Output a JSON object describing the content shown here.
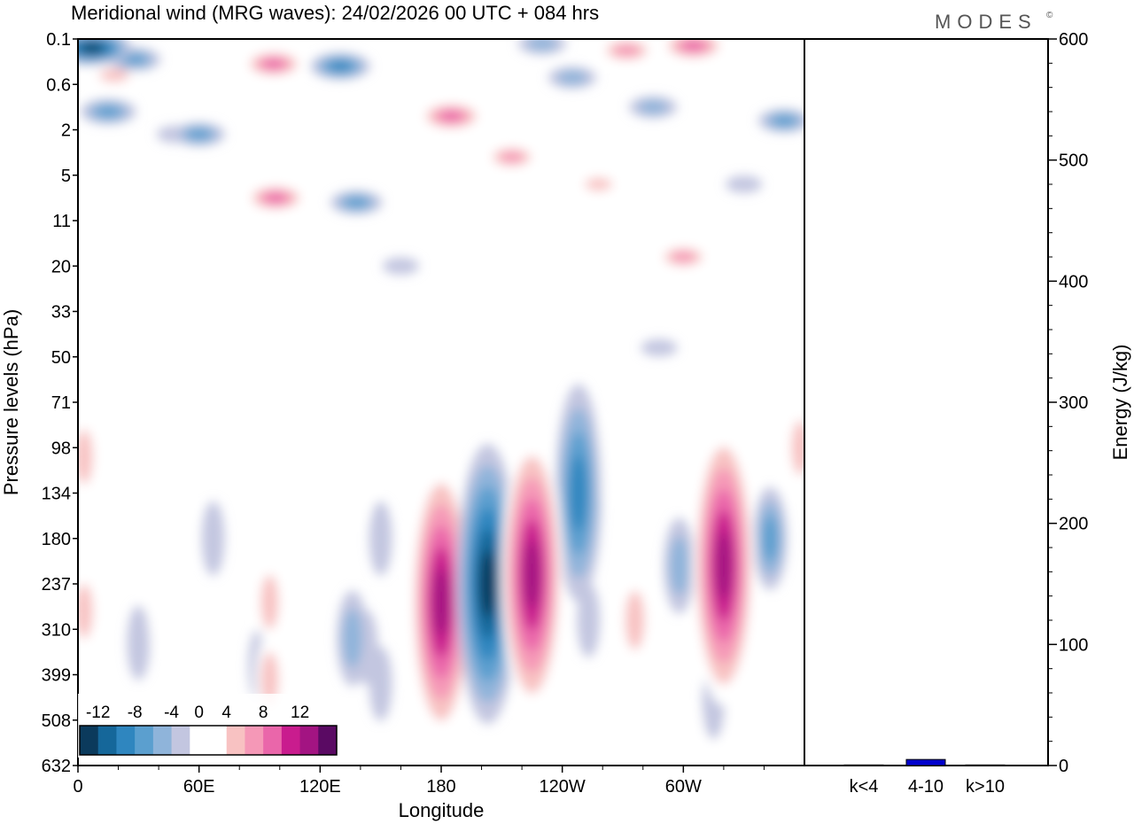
{
  "chart_data": {
    "type": "heatmap",
    "title": "Meridional wind (MRG waves):  24/02/2026  00 UTC  + 084 hrs",
    "logo": "MODES",
    "logo_mark": "©",
    "xlabel": "Longitude",
    "ylabel": "Pressure levels (hPa)",
    "x_ticks": [
      "0",
      "60E",
      "120E",
      "180",
      "120W",
      "60W"
    ],
    "x_tick_deg": [
      0,
      60,
      120,
      180,
      240,
      300
    ],
    "x_range_deg": [
      0,
      360
    ],
    "y_ticks": [
      "0.1",
      "0.6",
      "2",
      "5",
      "11",
      "20",
      "33",
      "50",
      "71",
      "98",
      "134",
      "180",
      "237",
      "310",
      "399",
      "508",
      "632"
    ],
    "colorbar": {
      "labels": [
        "-12",
        "-8",
        "-4",
        "0",
        "4",
        "8",
        "12"
      ],
      "label_levels": [
        -12,
        -8,
        -4,
        0,
        4,
        8,
        12
      ],
      "levels": [
        -14,
        -12,
        -10,
        -8,
        -6,
        -4,
        -2,
        2,
        4,
        6,
        8,
        10,
        12,
        14
      ],
      "colors": [
        "#0b3a5c",
        "#15679a",
        "#2f86bf",
        "#5b9fcf",
        "#8fb4da",
        "#c3c6e0",
        "#ffffff",
        "#ffffff",
        "#f8c2c2",
        "#f598b7",
        "#ea66aa",
        "#c91c8e",
        "#a31482",
        "#5a0a63"
      ]
    },
    "features": [
      {
        "lon": 7,
        "lev": 0.2,
        "v": -14
      },
      {
        "lon": 18,
        "lev": 0.8,
        "v": 6
      },
      {
        "lon": 28,
        "lev": 0.45,
        "v": -7
      },
      {
        "lon": 15,
        "lev": 1.6,
        "v": -8
      },
      {
        "lon": 48,
        "lev": 2.1,
        "v": -3
      },
      {
        "lon": 60,
        "lev": 2.1,
        "v": -7
      },
      {
        "lon": 64,
        "lev": 0.2,
        "v": 4
      },
      {
        "lon": 78,
        "lev": 1.2,
        "v": 2
      },
      {
        "lon": 97,
        "lev": 0.55,
        "v": 9
      },
      {
        "lon": 98,
        "lev": 3.5,
        "v": 9
      },
      {
        "lon": 130,
        "lev": 0.6,
        "v": -9
      },
      {
        "lon": 138,
        "lev": 3.6,
        "v": -7
      },
      {
        "lon": 160,
        "lev": 5.0,
        "v": -3
      },
      {
        "lon": 168,
        "lev": 2.6,
        "v": 4
      },
      {
        "lon": 185,
        "lev": 1.7,
        "v": 10
      },
      {
        "lon": 200,
        "lev": 5.2,
        "v": 3
      },
      {
        "lon": 215,
        "lev": 2.6,
        "v": 7
      },
      {
        "lon": 230,
        "lev": 0.1,
        "v": -6
      },
      {
        "lon": 245,
        "lev": 0.85,
        "v": -6
      },
      {
        "lon": 258,
        "lev": 3.2,
        "v": 5
      },
      {
        "lon": 272,
        "lev": 0.25,
        "v": 8
      },
      {
        "lon": 285,
        "lev": 1.5,
        "v": -6
      },
      {
        "lon": 300,
        "lev": 4.8,
        "v": 7
      },
      {
        "lon": 305,
        "lev": 0.15,
        "v": 10
      },
      {
        "lon": 330,
        "lev": 3.2,
        "v": -3
      },
      {
        "lon": 350,
        "lev": 1.8,
        "v": -7
      },
      {
        "lon": 150,
        "lev": 11.0,
        "v": -3
      },
      {
        "lon": 150,
        "lev": 14.2,
        "v": -3
      },
      {
        "lon": 288,
        "lev": 6.8,
        "v": -3
      },
      {
        "lon": 75,
        "lev": 6.2,
        "v": 3
      },
      {
        "lon": 100,
        "lev": 6.8,
        "v": 3
      },
      {
        "lon": 144,
        "lev": 7.2,
        "v": 4
      },
      {
        "lon": 140,
        "lev": 9.8,
        "v": 3
      },
      {
        "lon": 210,
        "lev": 7.8,
        "v": 3
      },
      {
        "lon": 3,
        "lev": 12.6,
        "v": 5
      },
      {
        "lon": 3,
        "lev": 9.2,
        "v": 5
      },
      {
        "lon": 30,
        "lev": 13.3,
        "v": -3
      },
      {
        "lon": 40,
        "lev": 12.6,
        "v": 3
      },
      {
        "lon": 50,
        "lev": 10.8,
        "v": 3
      },
      {
        "lon": 67,
        "lev": 11.0,
        "v": -3
      },
      {
        "lon": 90,
        "lev": 13.8,
        "v": -3
      },
      {
        "lon": 95,
        "lev": 12.4,
        "v": 5
      },
      {
        "lon": 95,
        "lev": 14.1,
        "v": 5
      },
      {
        "lon": 136,
        "lev": 13.2,
        "v": -6
      },
      {
        "lon": 143,
        "lev": 13.4,
        "v": -3
      },
      {
        "lon": 180,
        "lev": 12.4,
        "v": 14
      },
      {
        "lon": 203,
        "lev": 12.0,
        "v": -14
      },
      {
        "lon": 225,
        "lev": 11.8,
        "v": 14
      },
      {
        "lon": 248,
        "lev": 10.0,
        "v": -9
      },
      {
        "lon": 253,
        "lev": 12.8,
        "v": -3
      },
      {
        "lon": 260,
        "lev": 9.3,
        "v": 3
      },
      {
        "lon": 276,
        "lev": 12.8,
        "v": 6
      },
      {
        "lon": 298,
        "lev": 11.6,
        "v": -6
      },
      {
        "lon": 320,
        "lev": 11.6,
        "v": 14
      },
      {
        "lon": 325,
        "lev": 15.5,
        "v": 3
      },
      {
        "lon": 315,
        "lev": 14.6,
        "v": -3
      },
      {
        "lon": 343,
        "lev": 11.0,
        "v": -7
      },
      {
        "lon": 358,
        "lev": 9.0,
        "v": 5
      },
      {
        "lon": 305,
        "lev": 15.6,
        "v": 3
      }
    ]
  },
  "energy_chart": {
    "ylabel": "Energy (J/kg)",
    "y_ticks": [
      "0",
      "100",
      "200",
      "300",
      "400",
      "500",
      "600"
    ],
    "y_range": [
      0,
      600
    ],
    "categories": [
      "k<4",
      "4-10",
      "k>10"
    ],
    "values": [
      0.5,
      5,
      0.5
    ],
    "bar_color": "#0000cc"
  }
}
